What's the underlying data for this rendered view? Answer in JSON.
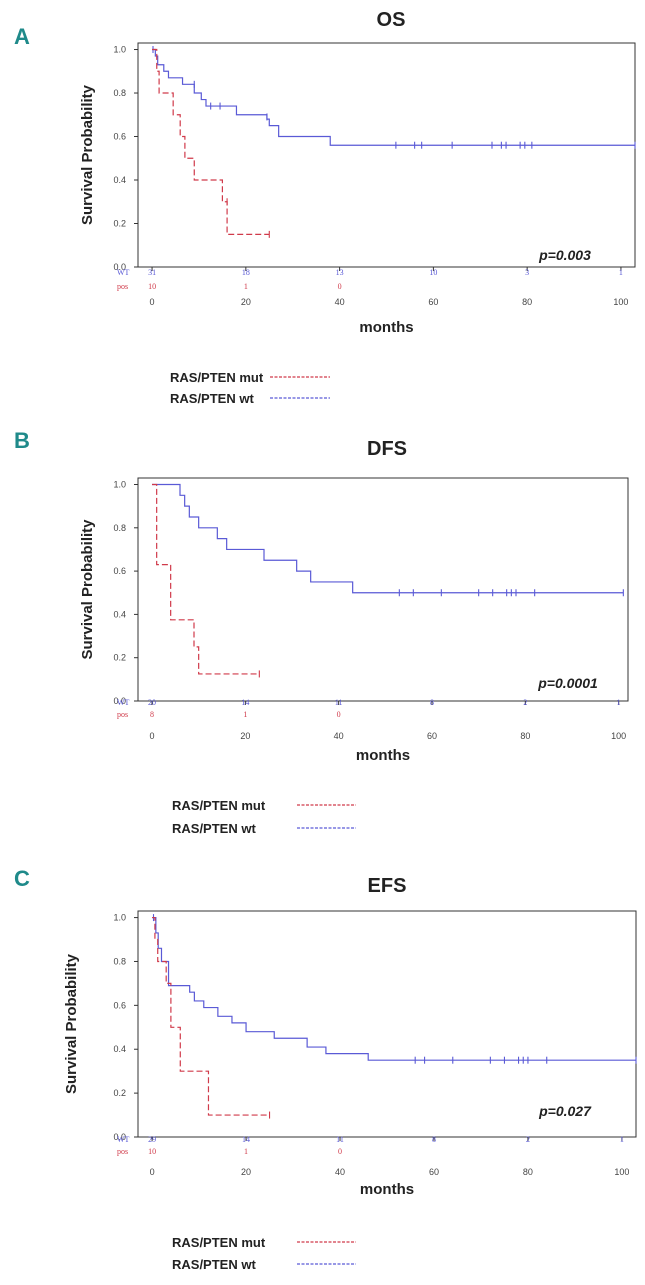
{
  "figure": {
    "colors": {
      "wt": "#5a5ad6",
      "mut": "#d03a4a",
      "panel_letter": "#1f8a8a",
      "axis": "#333333"
    }
  },
  "chart_data": [
    {
      "panel": "A",
      "type": "line",
      "title": "OS",
      "xlabel": "months",
      "ylabel": "Survival Probability",
      "xlim": [
        -3,
        103
      ],
      "ylim": [
        0,
        1.03
      ],
      "xticks": [
        0,
        20,
        40,
        60,
        80,
        100
      ],
      "yticks": [
        0.0,
        0.2,
        0.4,
        0.6,
        0.8,
        1.0
      ],
      "ytick_labels": [
        "0.0",
        "0.2",
        "0.4",
        "0.6",
        "0.8",
        "1.0"
      ],
      "p_value": "p=0.003",
      "risk_table": {
        "rows": [
          {
            "label": "WT",
            "series": "wt",
            "values": [
              "31",
              "18",
              "13",
              "10",
              "3",
              "1"
            ]
          },
          {
            "label": "pos",
            "series": "mut",
            "values": [
              "10",
              "1",
              "0"
            ]
          }
        ]
      },
      "series": [
        {
          "name": "RAS/PTEN wt",
          "key": "wt",
          "steps": [
            [
              0,
              1.0
            ],
            [
              0.7,
              0.97
            ],
            [
              1.2,
              0.93
            ],
            [
              2.5,
              0.9
            ],
            [
              3.5,
              0.87
            ],
            [
              6.5,
              0.84
            ],
            [
              9,
              0.8
            ],
            [
              10.5,
              0.77
            ],
            [
              11.5,
              0.74
            ],
            [
              18,
              0.7
            ],
            [
              24.5,
              0.68
            ],
            [
              25,
              0.65
            ],
            [
              27,
              0.6
            ],
            [
              38,
              0.56
            ],
            [
              103,
              0.56
            ]
          ],
          "censors": [
            [
              0.2,
              1.0
            ],
            [
              9,
              0.84
            ],
            [
              12.5,
              0.74
            ],
            [
              14.5,
              0.74
            ],
            [
              24.5,
              0.69
            ],
            [
              52,
              0.56
            ],
            [
              56,
              0.56
            ],
            [
              57.5,
              0.56
            ],
            [
              64,
              0.56
            ],
            [
              72.5,
              0.56
            ],
            [
              74.5,
              0.56
            ],
            [
              75.5,
              0.56
            ],
            [
              78.5,
              0.56
            ],
            [
              79.5,
              0.56
            ],
            [
              81,
              0.56
            ],
            [
              103,
              0.56
            ]
          ]
        },
        {
          "name": "RAS/PTEN mut",
          "key": "mut",
          "steps": [
            [
              0,
              1.0
            ],
            [
              1,
              0.9
            ],
            [
              1.5,
              0.8
            ],
            [
              4.5,
              0.7
            ],
            [
              6,
              0.6
            ],
            [
              7,
              0.5
            ],
            [
              9,
              0.4
            ],
            [
              15,
              0.3
            ],
            [
              16,
              0.15
            ],
            [
              25,
              0.15
            ]
          ],
          "censors": [
            [
              16,
              0.3
            ],
            [
              25,
              0.15
            ]
          ]
        }
      ],
      "legend": [
        {
          "label": "RAS/PTEN mut",
          "series": "mut"
        },
        {
          "label": "RAS/PTEN wt",
          "series": "wt"
        }
      ]
    },
    {
      "panel": "B",
      "type": "line",
      "title": "DFS",
      "xlabel": "months",
      "ylabel": "Survival Probability",
      "xlim": [
        -3,
        102
      ],
      "ylim": [
        0,
        1.03
      ],
      "xticks": [
        0,
        20,
        40,
        60,
        80,
        100
      ],
      "yticks": [
        0.0,
        0.2,
        0.4,
        0.6,
        0.8,
        1.0
      ],
      "ytick_labels": [
        "0.0",
        "0.2",
        "0.4",
        "0.6",
        "0.8",
        "1.0"
      ],
      "p_value": "p=0.0001",
      "risk_table": {
        "rows": [
          {
            "label": "WT",
            "series": "wt",
            "values": [
              "20",
              "14",
              "11",
              "8",
              "2",
              "1"
            ]
          },
          {
            "label": "pos",
            "series": "mut",
            "values": [
              "8",
              "1",
              "0"
            ]
          }
        ]
      },
      "series": [
        {
          "name": "RAS/PTEN wt",
          "key": "wt",
          "steps": [
            [
              0,
              1.0
            ],
            [
              6,
              0.95
            ],
            [
              7,
              0.9
            ],
            [
              8,
              0.85
            ],
            [
              10,
              0.8
            ],
            [
              14,
              0.75
            ],
            [
              16,
              0.7
            ],
            [
              24,
              0.65
            ],
            [
              31,
              0.6
            ],
            [
              34,
              0.55
            ],
            [
              43,
              0.5
            ],
            [
              101,
              0.5
            ]
          ],
          "censors": [
            [
              53,
              0.5
            ],
            [
              56,
              0.5
            ],
            [
              62,
              0.5
            ],
            [
              70,
              0.5
            ],
            [
              73,
              0.5
            ],
            [
              76,
              0.5
            ],
            [
              77,
              0.5
            ],
            [
              78,
              0.5
            ],
            [
              82,
              0.5
            ],
            [
              101,
              0.5
            ]
          ]
        },
        {
          "name": "RAS/PTEN mut",
          "key": "mut",
          "steps": [
            [
              0,
              1.0
            ],
            [
              1,
              0.63
            ],
            [
              4,
              0.375
            ],
            [
              9,
              0.25
            ],
            [
              10,
              0.125
            ],
            [
              23,
              0.125
            ]
          ],
          "censors": [
            [
              23,
              0.125
            ]
          ]
        }
      ],
      "legend": [
        {
          "label": "RAS/PTEN mut",
          "series": "mut"
        },
        {
          "label": "RAS/PTEN wt",
          "series": "wt"
        }
      ]
    },
    {
      "panel": "C",
      "type": "line",
      "title": "EFS",
      "xlabel": "months",
      "ylabel": "Survival Probability",
      "xlim": [
        -3,
        103
      ],
      "ylim": [
        0,
        1.03
      ],
      "xticks": [
        0,
        20,
        40,
        60,
        80,
        100
      ],
      "yticks": [
        0.0,
        0.2,
        0.4,
        0.6,
        0.8,
        1.0
      ],
      "ytick_labels": [
        "0.0",
        "0.2",
        "0.4",
        "0.6",
        "0.8",
        "1.0"
      ],
      "p_value": "p=0.027",
      "risk_table": {
        "rows": [
          {
            "label": "WT",
            "series": "wt",
            "values": [
              "29",
              "14",
              "11",
              "8",
              "2",
              "1"
            ]
          },
          {
            "label": "pos",
            "series": "mut",
            "values": [
              "10",
              "1",
              "0"
            ]
          }
        ]
      },
      "series": [
        {
          "name": "RAS/PTEN wt",
          "key": "wt",
          "steps": [
            [
              0,
              1.0
            ],
            [
              0.8,
              0.93
            ],
            [
              1.3,
              0.86
            ],
            [
              2,
              0.8
            ],
            [
              3.5,
              0.69
            ],
            [
              8,
              0.66
            ],
            [
              9,
              0.62
            ],
            [
              11,
              0.59
            ],
            [
              14,
              0.55
            ],
            [
              17,
              0.52
            ],
            [
              20,
              0.48
            ],
            [
              26,
              0.45
            ],
            [
              33,
              0.41
            ],
            [
              37,
              0.38
            ],
            [
              46,
              0.35
            ],
            [
              103,
              0.35
            ]
          ],
          "censors": [
            [
              0.3,
              1.0
            ],
            [
              56,
              0.35
            ],
            [
              58,
              0.35
            ],
            [
              64,
              0.35
            ],
            [
              72,
              0.35
            ],
            [
              75,
              0.35
            ],
            [
              78,
              0.35
            ],
            [
              79,
              0.35
            ],
            [
              80,
              0.35
            ],
            [
              84,
              0.35
            ],
            [
              103,
              0.35
            ]
          ]
        },
        {
          "name": "RAS/PTEN mut",
          "key": "mut",
          "steps": [
            [
              0,
              1.0
            ],
            [
              0.6,
              0.9
            ],
            [
              1.2,
              0.8
            ],
            [
              3,
              0.7
            ],
            [
              4,
              0.5
            ],
            [
              6,
              0.3
            ],
            [
              12,
              0.1
            ],
            [
              25,
              0.1
            ]
          ],
          "censors": [
            [
              25,
              0.1
            ]
          ]
        }
      ],
      "legend": [
        {
          "label": "RAS/PTEN mut",
          "series": "mut"
        },
        {
          "label": "RAS/PTEN wt",
          "series": "wt"
        }
      ]
    }
  ]
}
